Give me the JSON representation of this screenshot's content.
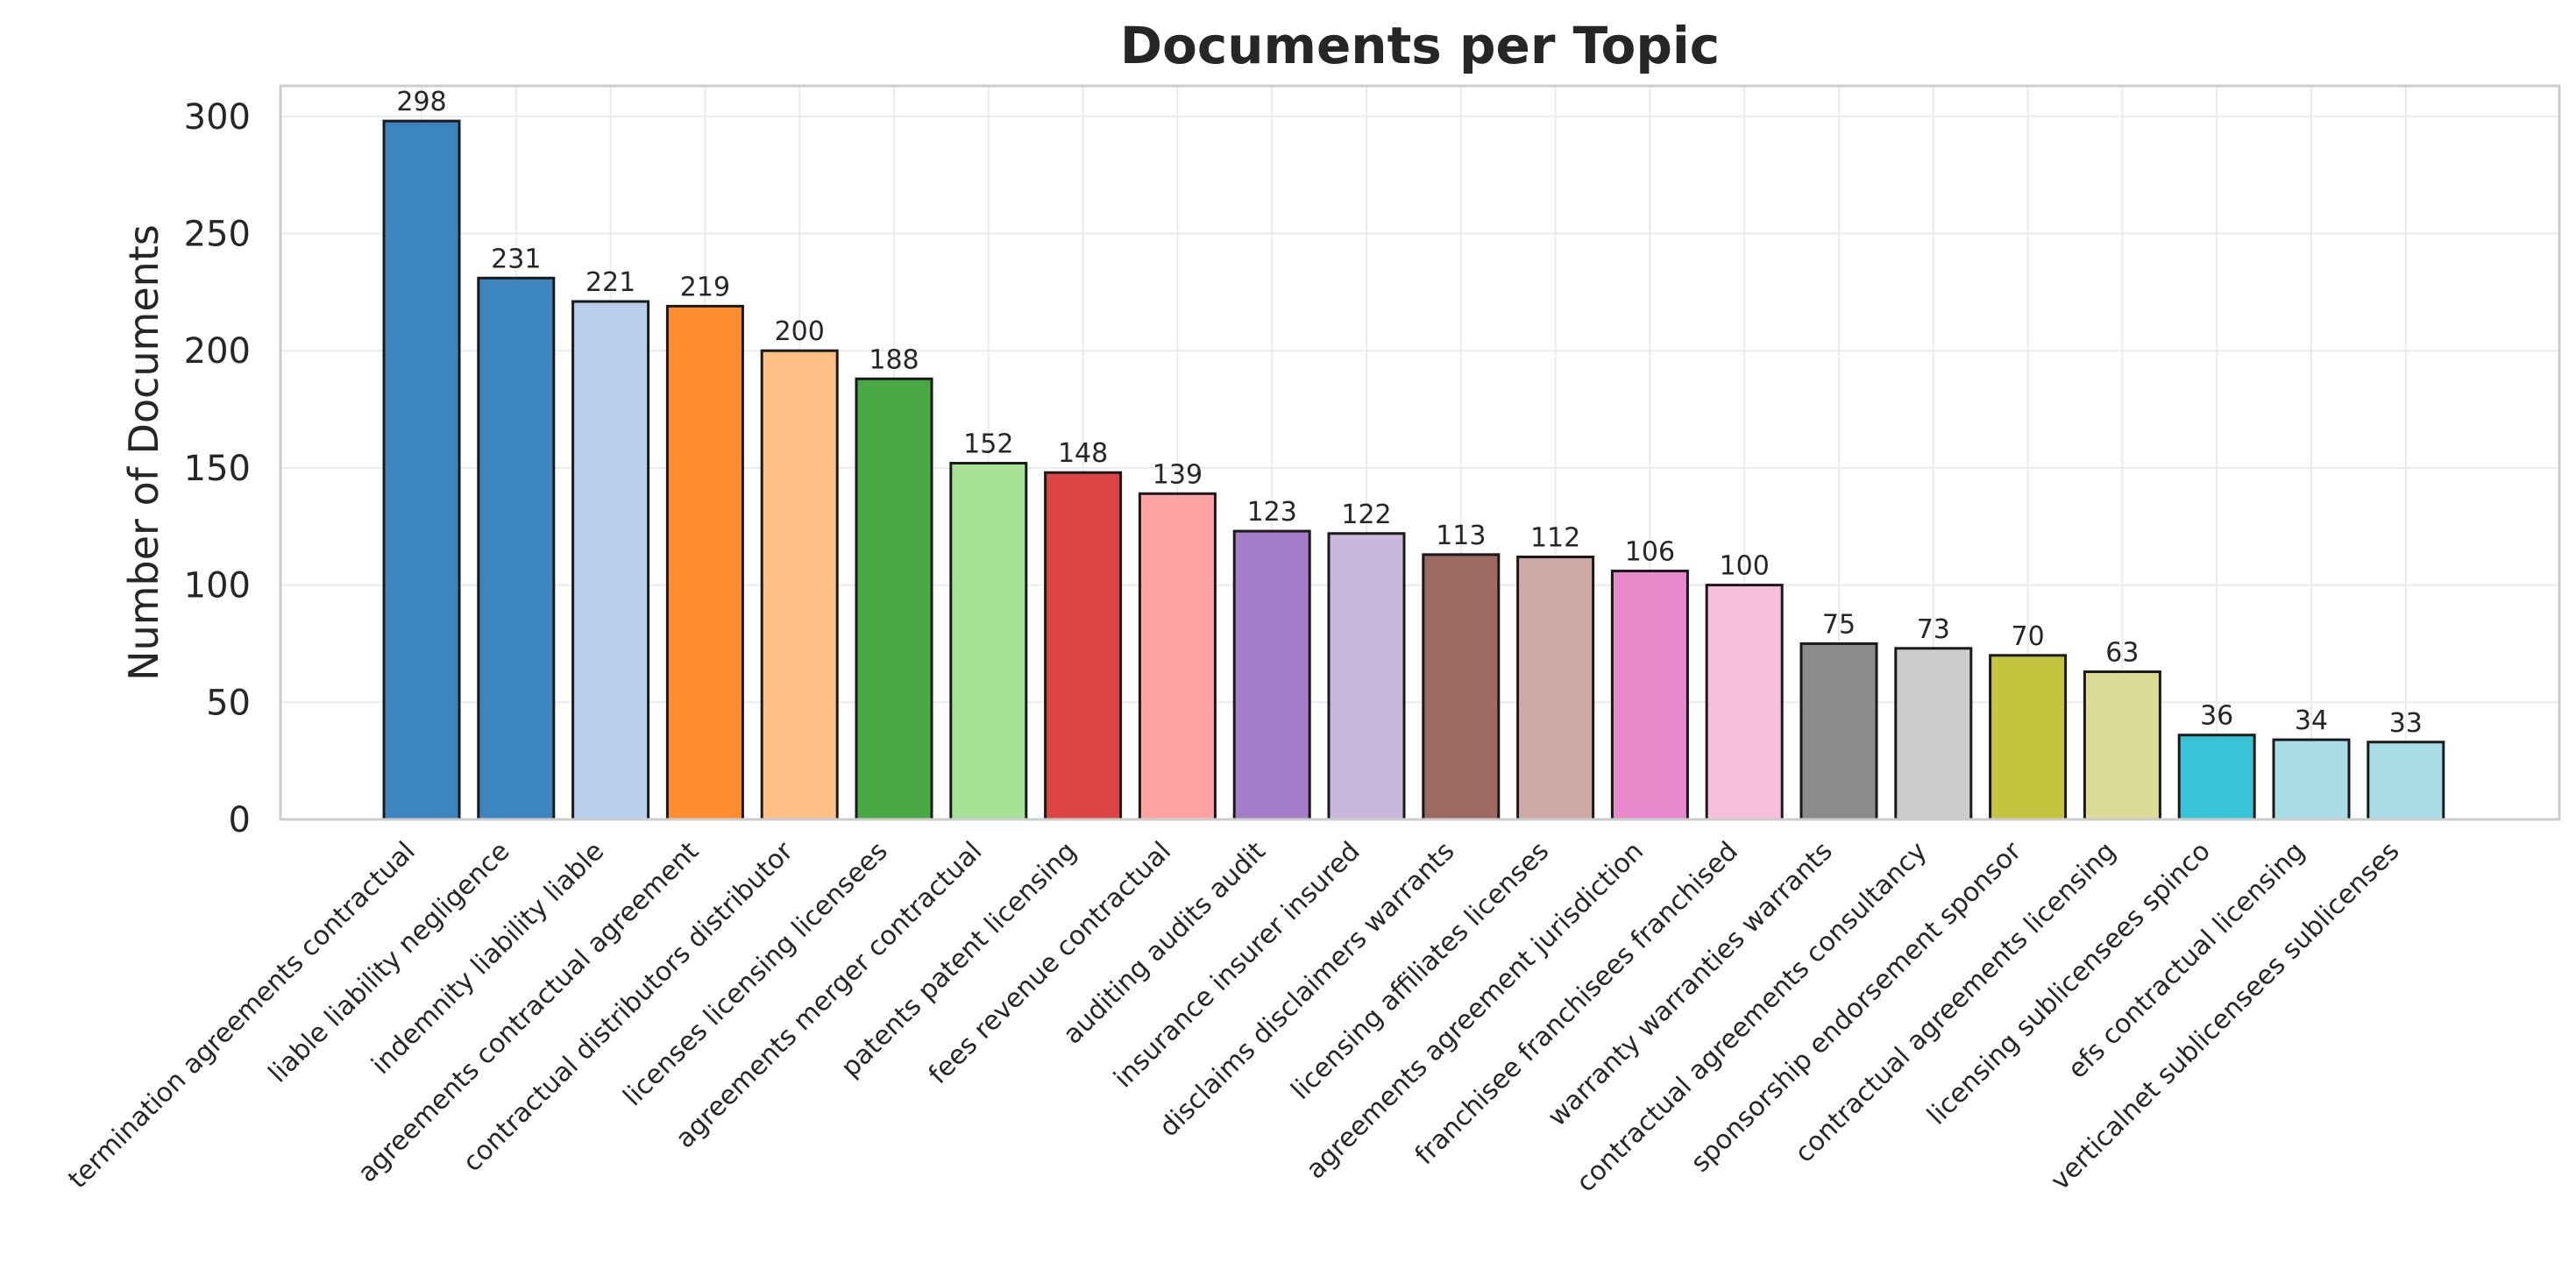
{
  "chart_data": {
    "type": "bar",
    "title": "Documents per Topic",
    "xlabel": "",
    "ylabel": "Number of Documents",
    "ylim": [
      0,
      313
    ],
    "yticks": [
      0,
      50,
      100,
      150,
      200,
      250,
      300
    ],
    "grid": true,
    "legend": "none",
    "categories": [
      "termination agreements contractual",
      "liable liability negligence",
      "indemnity liability liable",
      "agreements contractual agreement",
      "contractual distributors distributor",
      "licenses licensing licensees",
      "agreements merger contractual",
      "patents patent licensing",
      "fees revenue contractual",
      "auditing audits audit",
      "insurance insurer insured",
      "disclaims disclaimers warrants",
      "licensing affiliates licenses",
      "agreements agreement jurisdiction",
      "franchisee franchisees franchised",
      "warranty warranties warrants",
      "contractual agreements consultancy",
      "sponsorship endorsement sponsor",
      "contractual agreements licensing",
      "licensing sublicensees spinco",
      "efs contractual licensing",
      "verticalnet sublicensees sublicenses"
    ],
    "values": [
      298,
      231,
      221,
      219,
      200,
      188,
      152,
      148,
      139,
      123,
      122,
      113,
      112,
      106,
      100,
      75,
      73,
      70,
      63,
      36,
      34,
      33
    ],
    "colors": [
      "#3d85bf",
      "#3d85bf",
      "#b8cfec",
      "#ff8c2e",
      "#ffbf85",
      "#4aa945",
      "#a8e296",
      "#dc4343",
      "#ffa3a2",
      "#a47cc8",
      "#c9b8dc",
      "#9c6a61",
      "#cdaba4",
      "#ea88cc",
      "#f8bfdb",
      "#8c8c8c",
      "#cccccc",
      "#c5c43e",
      "#dbdc98",
      "#38c4d6",
      "#a8dde8",
      "#a8dde8"
    ]
  }
}
